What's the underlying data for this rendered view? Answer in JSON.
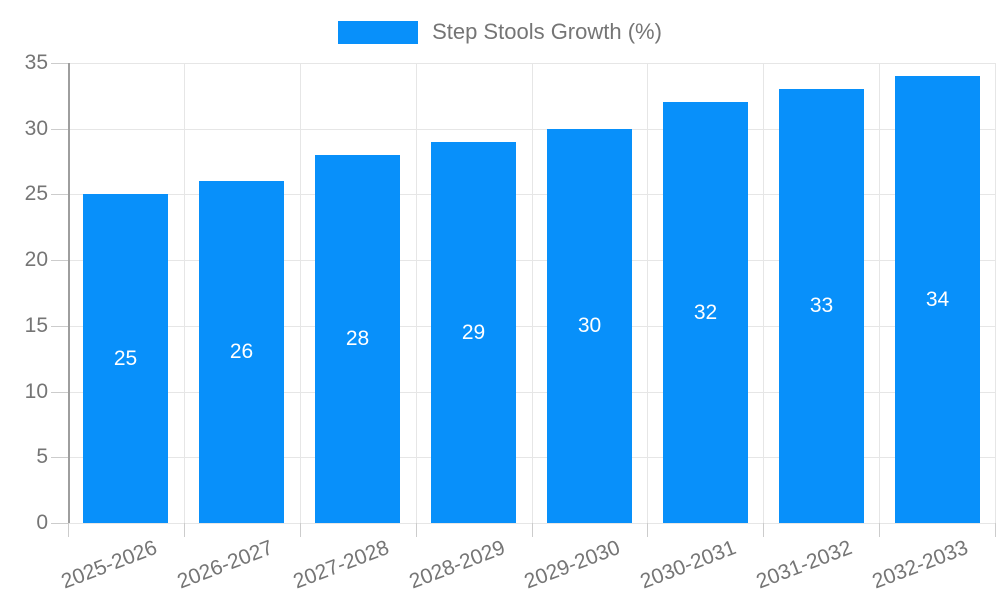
{
  "legend": {
    "label": "Step Stools Growth (%)"
  },
  "colors": {
    "bar": "#0890FA",
    "bar_label": "#ffffff",
    "axis": "#9e9e9e",
    "grid": "#e6e6e6",
    "tick": "#cccccc",
    "text": "#757575",
    "background": "#ffffff"
  },
  "chart_data": {
    "type": "bar",
    "title": "Step Stools Growth (%)",
    "legend_entries": [
      "Step Stools Growth (%)"
    ],
    "legend_position": "top",
    "categories": [
      "2025-2026",
      "2026-2027",
      "2027-2028",
      "2028-2029",
      "2029-2030",
      "2030-2031",
      "2031-2032",
      "2032-2033"
    ],
    "values": [
      25,
      26,
      28,
      29,
      30,
      32,
      33,
      34
    ],
    "bar_labels": [
      25,
      26,
      28,
      29,
      30,
      32,
      33,
      34
    ],
    "xlabel": "",
    "ylabel": "",
    "ylim": [
      0,
      35
    ],
    "yticks": [
      0,
      5,
      10,
      15,
      20,
      25,
      30,
      35
    ],
    "grid": true,
    "x_label_rotation_deg": -21
  }
}
